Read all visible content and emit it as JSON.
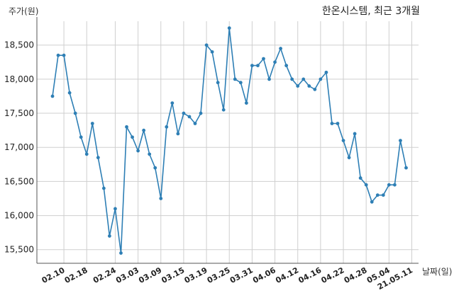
{
  "chart_data": {
    "type": "line",
    "title": "한온시스템, 최근 3개월",
    "xlabel": "날짜(일)",
    "ylabel": "주가(원)",
    "ylim": [
      15300,
      18850
    ],
    "yticks": [
      15500,
      16000,
      16500,
      17000,
      17500,
      18000,
      18500
    ],
    "ytick_labels": [
      "15,500",
      "16,000",
      "16,500",
      "17,000",
      "17,500",
      "18,000",
      "18,500"
    ],
    "grid": true,
    "legend": "none",
    "line_color": "#2e7fb5",
    "xtick_labels": [
      "02.10",
      "02.18",
      "02.24",
      "03.03",
      "03.09",
      "03.15",
      "03.19",
      "03.25",
      "03.31",
      "04.06",
      "04.12",
      "04.16",
      "04.22",
      "04.28",
      "05.04",
      "21.05.11"
    ],
    "xtick_positions": [
      2,
      6,
      11,
      15,
      19,
      23,
      27,
      31,
      35,
      39,
      43,
      47,
      51,
      55,
      59,
      63
    ],
    "series": [
      {
        "values": [
          17750,
          18350,
          18350,
          17800,
          17500,
          17150,
          16900,
          17350,
          16850,
          16400,
          15700,
          16100,
          15450,
          17300,
          17150,
          16950,
          17250,
          16900,
          16700,
          16250,
          17300,
          17650,
          17200,
          17500,
          17450,
          17350,
          17500,
          18500,
          18400,
          17950,
          17550,
          18750,
          18000,
          17950,
          17650,
          18200,
          18200,
          18300,
          18000,
          18250,
          18450,
          18200,
          18000,
          17900,
          18000,
          17900,
          17850,
          18000,
          18100,
          17350,
          17350,
          17100,
          16850,
          17200,
          16550,
          16450,
          16200,
          16300,
          16300,
          16450,
          16450,
          17100,
          16700
        ]
      }
    ]
  }
}
